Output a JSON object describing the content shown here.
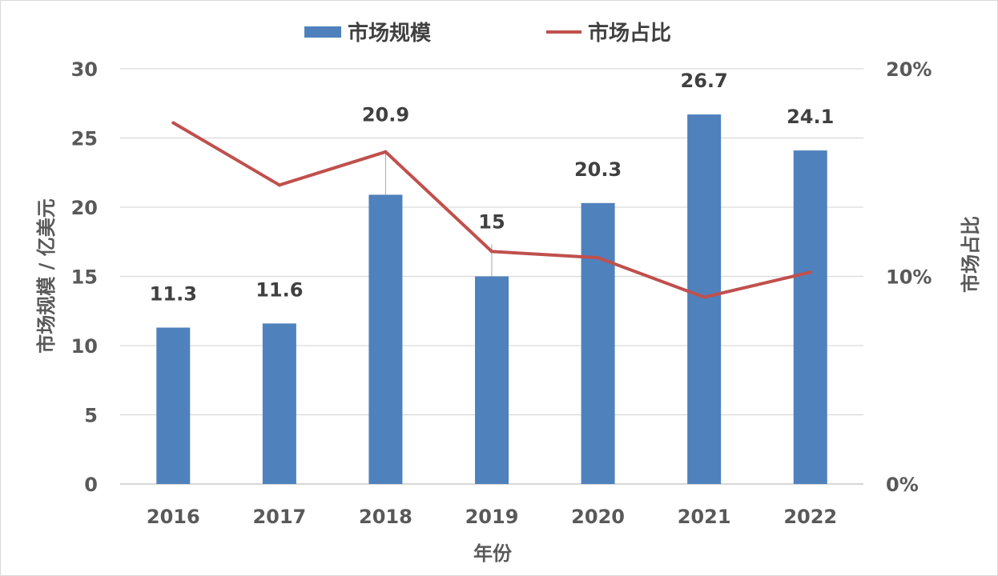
{
  "chart_data": {
    "type": "bar",
    "categories": [
      "2016",
      "2017",
      "2018",
      "2019",
      "2020",
      "2021",
      "2022"
    ],
    "series": [
      {
        "name": "市场规模",
        "type": "bar",
        "axis": "left",
        "color": "#4F81BD",
        "values": [
          11.3,
          11.6,
          20.9,
          15,
          20.3,
          26.7,
          24.1
        ],
        "labels": [
          "11.3",
          "11.6",
          "20.9",
          "15",
          "20.3",
          "26.7",
          "24.1"
        ]
      },
      {
        "name": "市场占比",
        "type": "line",
        "axis": "right",
        "color": "#C0504D",
        "values": [
          17.4,
          14.4,
          16.0,
          11.2,
          10.9,
          9.0,
          10.2
        ]
      }
    ],
    "xlabel": "年份",
    "ylabel": "市场规模 / 亿美元",
    "y2label": "市场占比",
    "ylim": [
      0,
      30
    ],
    "y2lim": [
      0,
      20
    ],
    "yticks": [
      "0",
      "5",
      "10",
      "15",
      "20",
      "25",
      "30"
    ],
    "y2ticks": [
      "0%",
      "10%",
      "20%"
    ],
    "grid": true,
    "legend": "top-center"
  }
}
